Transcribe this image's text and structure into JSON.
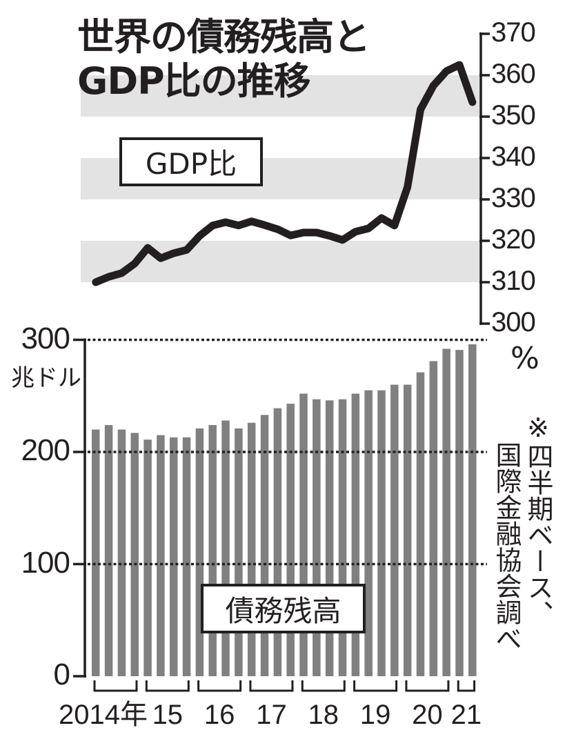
{
  "title": {
    "line1": "世界の債務残高と",
    "line2": "GDP比の推移"
  },
  "legend": {
    "gdp_ratio": "GDP比",
    "debt": "債務残高"
  },
  "units": {
    "debt": "兆ドル",
    "gdp_ratio": "%"
  },
  "note": {
    "line1": "※四半期ベース、",
    "line2": "国際金融協会調べ"
  },
  "colors": {
    "bar": "#808080",
    "line": "#231f20",
    "band": "#e3e3e4",
    "axis": "#231f20"
  },
  "chart_data": [
    {
      "type": "line",
      "title": "GDP比",
      "ylabel": "%",
      "ylim": [
        300,
        370
      ],
      "yticks": [
        300,
        310,
        320,
        330,
        340,
        350,
        360,
        370
      ],
      "yaxis_position": "right",
      "shaded_bands": [
        [
          310,
          320
        ],
        [
          330,
          340
        ],
        [
          350,
          360
        ]
      ],
      "x": [
        "2014Q1",
        "2014Q2",
        "2014Q3",
        "2014Q4",
        "2015Q1",
        "2015Q2",
        "2015Q3",
        "2015Q4",
        "2016Q1",
        "2016Q2",
        "2016Q3",
        "2016Q4",
        "2017Q1",
        "2017Q2",
        "2017Q3",
        "2017Q4",
        "2018Q1",
        "2018Q2",
        "2018Q3",
        "2018Q4",
        "2019Q1",
        "2019Q2",
        "2019Q3",
        "2019Q4",
        "2020Q1",
        "2020Q2",
        "2020Q3",
        "2020Q4",
        "2021Q1",
        "2021Q2"
      ],
      "values": [
        310.0,
        311.3,
        312.2,
        314.5,
        318.3,
        315.8,
        317.0,
        317.8,
        321.2,
        323.7,
        324.5,
        323.7,
        324.7,
        323.8,
        322.8,
        321.3,
        322.0,
        322.0,
        321.2,
        320.2,
        322.2,
        323.0,
        325.5,
        323.7,
        333.0,
        351.7,
        357.5,
        361.0,
        362.5,
        353.5
      ]
    },
    {
      "type": "bar",
      "title": "債務残高",
      "ylabel": "兆ドル",
      "ylim": [
        0,
        300
      ],
      "yticks": [
        0,
        100,
        200,
        300
      ],
      "grid": "dotted at 100, 200, 300",
      "categories": [
        "2014Q1",
        "2014Q2",
        "2014Q3",
        "2014Q4",
        "2015Q1",
        "2015Q2",
        "2015Q3",
        "2015Q4",
        "2016Q1",
        "2016Q2",
        "2016Q3",
        "2016Q4",
        "2017Q1",
        "2017Q2",
        "2017Q3",
        "2017Q4",
        "2018Q1",
        "2018Q2",
        "2018Q3",
        "2018Q4",
        "2019Q1",
        "2019Q2",
        "2019Q3",
        "2019Q4",
        "2020Q1",
        "2020Q2",
        "2020Q3",
        "2020Q4",
        "2021Q1",
        "2021Q2"
      ],
      "values": [
        220,
        224,
        220,
        217,
        211,
        215,
        213,
        213,
        221,
        224,
        228,
        221,
        226,
        233,
        239,
        243,
        252,
        247,
        246,
        247,
        252,
        255,
        255,
        260,
        260,
        271,
        281,
        292,
        291,
        296
      ],
      "xlabel_groups": [
        {
          "label": "2014年",
          "start": 0,
          "end": 3
        },
        {
          "label": "15",
          "start": 4,
          "end": 7
        },
        {
          "label": "16",
          "start": 8,
          "end": 11
        },
        {
          "label": "17",
          "start": 12,
          "end": 15
        },
        {
          "label": "18",
          "start": 16,
          "end": 19
        },
        {
          "label": "19",
          "start": 20,
          "end": 23
        },
        {
          "label": "20",
          "start": 24,
          "end": 27
        },
        {
          "label": "21",
          "start": 28,
          "end": 29
        }
      ]
    }
  ]
}
